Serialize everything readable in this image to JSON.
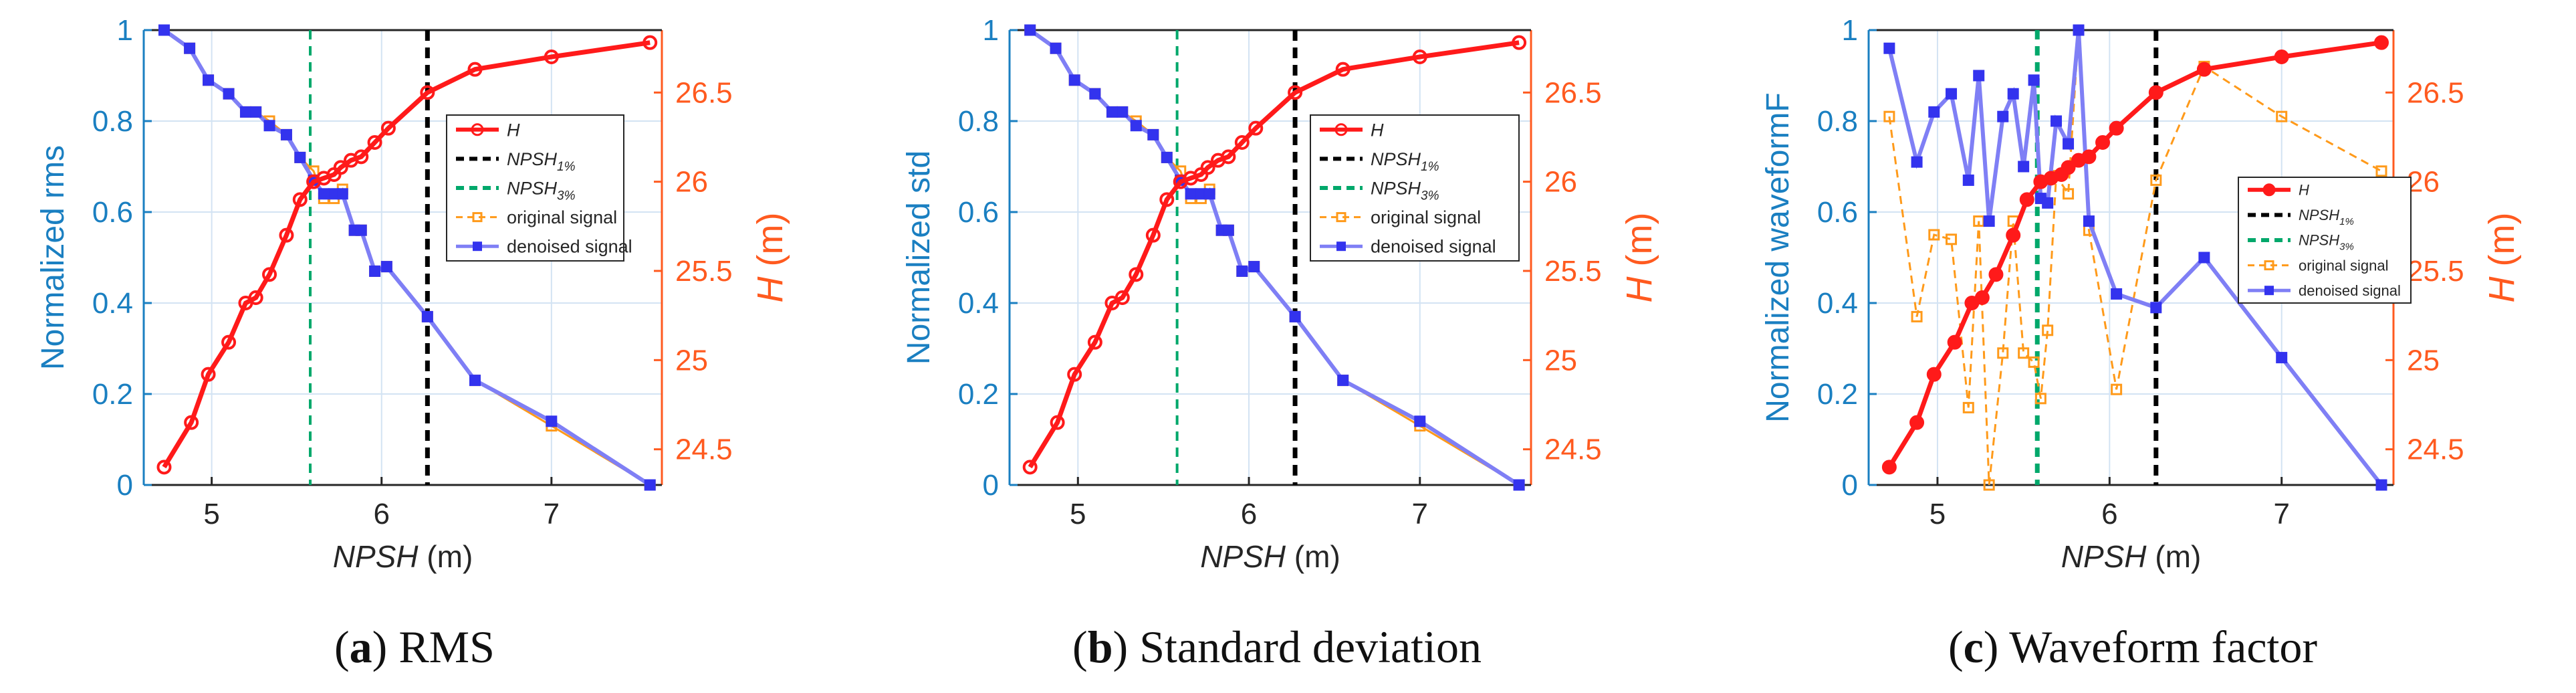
{
  "figure": {
    "captions": [
      {
        "letter": "a",
        "text": " RMS"
      },
      {
        "letter": "b",
        "text": " Standard deviation"
      },
      {
        "letter": "c",
        "text": " Waveform factor"
      }
    ]
  },
  "colors": {
    "left_axis": "#1a7fc1",
    "right_axis": "#ff5a1f",
    "H": "#ff1a1a",
    "npsh1": "#000000",
    "npsh3": "#00a86b",
    "original": "#ff9a1a",
    "denoised": "#3333ee",
    "denoised_line": "#7f7ff5",
    "grid": "#d3e3f3"
  },
  "chart_data": [
    {
      "id": "a",
      "type": "line",
      "xlabel_italic": "NPSH",
      "xlabel_unit": " (m)",
      "ylabel_left": "Normalized rms",
      "ylabel_right_italic": "H",
      "ylabel_right_unit": " (m)",
      "xlim": [
        4.6,
        7.65
      ],
      "ylim_left": [
        0,
        1
      ],
      "ylim_right": [
        24.3,
        26.85
      ],
      "xticks": [
        5,
        6,
        7
      ],
      "yticks_left": [
        0,
        0.2,
        0.4,
        0.6,
        0.8,
        1
      ],
      "yticks_left_labels": [
        "0",
        "0.2",
        "0.4",
        "0.6",
        "0.8",
        "1"
      ],
      "yticks_right": [
        24.5,
        25,
        25.5,
        26,
        26.5
      ],
      "yticks_right_labels": [
        "24.5",
        "25",
        "25.5",
        "26",
        "26.5"
      ],
      "grid": true,
      "npsh1_x": 6.27,
      "npsh3_x": 5.58,
      "legend_position": "right-middle",
      "legend_entries": [
        {
          "key": "H",
          "label": "H",
          "sub": ""
        },
        {
          "key": "npsh1",
          "label": "NPSH",
          "sub": "1%"
        },
        {
          "key": "npsh3",
          "label": "NPSH",
          "sub": "3%"
        },
        {
          "key": "original",
          "label": "original signal",
          "sub": ""
        },
        {
          "key": "denoised",
          "label": "denoised signal",
          "sub": ""
        }
      ],
      "H_series": {
        "x": [
          4.72,
          4.88,
          4.98,
          5.1,
          5.2,
          5.26,
          5.34,
          5.44,
          5.52,
          5.6,
          5.66,
          5.72,
          5.76,
          5.82,
          5.88,
          5.96,
          6.04,
          6.27,
          6.55,
          7.0,
          7.58
        ],
        "y": [
          24.4,
          24.65,
          24.92,
          25.1,
          25.32,
          25.35,
          25.48,
          25.7,
          25.9,
          26.0,
          26.02,
          26.04,
          26.08,
          26.12,
          26.14,
          26.22,
          26.3,
          26.5,
          26.63,
          26.7,
          26.78
        ]
      },
      "original_signal": {
        "x": [
          4.72,
          4.87,
          4.98,
          5.1,
          5.2,
          5.26,
          5.34,
          5.44,
          5.52,
          5.6,
          5.66,
          5.72,
          5.77,
          5.84,
          5.88,
          5.96,
          6.03,
          6.27,
          6.55,
          7.0,
          7.58
        ],
        "y": [
          1.0,
          0.96,
          0.89,
          0.86,
          0.82,
          0.82,
          0.8,
          0.77,
          0.72,
          0.69,
          0.63,
          0.63,
          0.65,
          0.56,
          0.56,
          0.47,
          0.48,
          0.37,
          0.23,
          0.13,
          0.0
        ]
      },
      "denoised_signal": {
        "x": [
          4.72,
          4.87,
          4.98,
          5.1,
          5.2,
          5.26,
          5.34,
          5.44,
          5.52,
          5.6,
          5.66,
          5.72,
          5.77,
          5.84,
          5.88,
          5.96,
          6.03,
          6.27,
          6.55,
          7.0,
          7.58
        ],
        "y": [
          1.0,
          0.96,
          0.89,
          0.86,
          0.82,
          0.82,
          0.79,
          0.77,
          0.72,
          0.67,
          0.64,
          0.64,
          0.64,
          0.56,
          0.56,
          0.47,
          0.48,
          0.37,
          0.23,
          0.14,
          0.0
        ]
      }
    },
    {
      "id": "b",
      "type": "line",
      "xlabel_italic": "NPSH",
      "xlabel_unit": " (m)",
      "ylabel_left": "Normalized std",
      "ylabel_right_italic": "H",
      "ylabel_right_unit": " (m)",
      "xlim": [
        4.6,
        7.65
      ],
      "ylim_left": [
        0,
        1
      ],
      "ylim_right": [
        24.3,
        26.85
      ],
      "xticks": [
        5,
        6,
        7
      ],
      "yticks_left": [
        0,
        0.2,
        0.4,
        0.6,
        0.8,
        1
      ],
      "yticks_left_labels": [
        "0",
        "0.2",
        "0.4",
        "0.6",
        "0.8",
        "1"
      ],
      "yticks_right": [
        24.5,
        25,
        25.5,
        26,
        26.5
      ],
      "yticks_right_labels": [
        "24.5",
        "25",
        "25.5",
        "26",
        "26.5"
      ],
      "grid": true,
      "npsh1_x": 6.27,
      "npsh3_x": 5.58,
      "legend_position": "right-middle",
      "legend_entries": [
        {
          "key": "H",
          "label": "H",
          "sub": ""
        },
        {
          "key": "npsh1",
          "label": "NPSH",
          "sub": "1%"
        },
        {
          "key": "npsh3",
          "label": "NPSH",
          "sub": "3%"
        },
        {
          "key": "original",
          "label": "original signal",
          "sub": ""
        },
        {
          "key": "denoised",
          "label": "denoised signal",
          "sub": ""
        }
      ],
      "H_series": {
        "x": [
          4.72,
          4.88,
          4.98,
          5.1,
          5.2,
          5.26,
          5.34,
          5.44,
          5.52,
          5.6,
          5.66,
          5.72,
          5.76,
          5.82,
          5.88,
          5.96,
          6.04,
          6.27,
          6.55,
          7.0,
          7.58
        ],
        "y": [
          24.4,
          24.65,
          24.92,
          25.1,
          25.32,
          25.35,
          25.48,
          25.7,
          25.9,
          26.0,
          26.02,
          26.04,
          26.08,
          26.12,
          26.14,
          26.22,
          26.3,
          26.5,
          26.63,
          26.7,
          26.78
        ]
      },
      "original_signal": {
        "x": [
          4.72,
          4.87,
          4.98,
          5.1,
          5.2,
          5.26,
          5.34,
          5.44,
          5.52,
          5.6,
          5.66,
          5.72,
          5.77,
          5.84,
          5.88,
          5.96,
          6.03,
          6.27,
          6.55,
          7.0,
          7.58
        ],
        "y": [
          1.0,
          0.96,
          0.89,
          0.86,
          0.82,
          0.82,
          0.8,
          0.77,
          0.72,
          0.69,
          0.63,
          0.63,
          0.65,
          0.56,
          0.56,
          0.47,
          0.48,
          0.37,
          0.23,
          0.13,
          0.0
        ]
      },
      "denoised_signal": {
        "x": [
          4.72,
          4.87,
          4.98,
          5.1,
          5.2,
          5.26,
          5.34,
          5.44,
          5.52,
          5.6,
          5.66,
          5.72,
          5.77,
          5.84,
          5.88,
          5.96,
          6.03,
          6.27,
          6.55,
          7.0,
          7.58
        ],
        "y": [
          1.0,
          0.96,
          0.89,
          0.86,
          0.82,
          0.82,
          0.79,
          0.77,
          0.72,
          0.67,
          0.64,
          0.64,
          0.64,
          0.56,
          0.56,
          0.47,
          0.48,
          0.37,
          0.23,
          0.14,
          0.0
        ]
      }
    },
    {
      "id": "c",
      "type": "line",
      "xlabel_italic": "NPSH",
      "xlabel_unit": " (m)",
      "ylabel_left": "Normalized waveformF",
      "ylabel_right_italic": "H",
      "ylabel_right_unit": " (m)",
      "xlim": [
        4.6,
        7.65
      ],
      "ylim_left": [
        0,
        1
      ],
      "ylim_right": [
        24.3,
        26.85
      ],
      "xticks": [
        5,
        6,
        7
      ],
      "yticks_left": [
        0,
        0.2,
        0.4,
        0.6,
        0.8,
        1
      ],
      "yticks_left_labels": [
        "0",
        "0.2",
        "0.4",
        "0.6",
        "0.8",
        "1"
      ],
      "yticks_right": [
        24.5,
        25,
        25.5,
        26,
        26.5
      ],
      "yticks_right_labels": [
        "24.5",
        "25",
        "25.5",
        "26",
        "26.5"
      ],
      "grid": true,
      "npsh1_x": 6.27,
      "npsh3_x": 5.58,
      "legend_position": "right-middle",
      "legend_entries": [
        {
          "key": "H",
          "label": "H",
          "sub": ""
        },
        {
          "key": "npsh1",
          "label": "NPSH",
          "sub": "1%"
        },
        {
          "key": "npsh3",
          "label": "NPSH",
          "sub": "3%"
        },
        {
          "key": "original",
          "label": "original signal",
          "sub": ""
        },
        {
          "key": "denoised",
          "label": "denoised signal",
          "sub": ""
        }
      ],
      "H_series": {
        "x": [
          4.72,
          4.88,
          4.98,
          5.1,
          5.2,
          5.26,
          5.34,
          5.44,
          5.52,
          5.6,
          5.66,
          5.72,
          5.76,
          5.82,
          5.88,
          5.96,
          6.04,
          6.27,
          6.55,
          7.0,
          7.58
        ],
        "y": [
          24.4,
          24.65,
          24.92,
          25.1,
          25.32,
          25.35,
          25.48,
          25.7,
          25.9,
          26.0,
          26.02,
          26.04,
          26.08,
          26.12,
          26.14,
          26.22,
          26.3,
          26.5,
          26.63,
          26.7,
          26.78
        ]
      },
      "original_signal": {
        "x": [
          4.72,
          4.88,
          4.98,
          5.08,
          5.18,
          5.24,
          5.3,
          5.38,
          5.44,
          5.5,
          5.56,
          5.6,
          5.64,
          5.69,
          5.76,
          5.82,
          5.88,
          6.04,
          6.27,
          6.55,
          7.0,
          7.58
        ],
        "y": [
          0.81,
          0.37,
          0.55,
          0.54,
          0.17,
          0.58,
          0.0,
          0.29,
          0.58,
          0.29,
          0.27,
          0.19,
          0.34,
          0.68,
          0.64,
          1.0,
          0.56,
          0.21,
          0.67,
          0.92,
          0.81,
          0.69
        ]
      },
      "denoised_signal": {
        "x": [
          4.72,
          4.88,
          4.98,
          5.08,
          5.18,
          5.24,
          5.3,
          5.38,
          5.44,
          5.5,
          5.56,
          5.6,
          5.64,
          5.69,
          5.76,
          5.82,
          5.88,
          6.04,
          6.27,
          6.55,
          7.0,
          7.58
        ],
        "y": [
          0.96,
          0.71,
          0.82,
          0.86,
          0.67,
          0.9,
          0.58,
          0.81,
          0.86,
          0.7,
          0.89,
          0.63,
          0.62,
          0.8,
          0.75,
          1.0,
          0.58,
          0.42,
          0.39,
          0.5,
          0.28,
          0.0
        ]
      }
    }
  ]
}
